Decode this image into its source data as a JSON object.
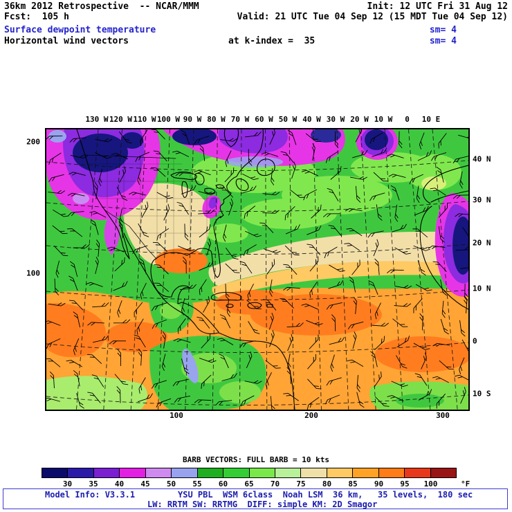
{
  "header": {
    "model_line_left": "36km 2012 Retrospective  -- NCAR/MMM",
    "init_label": "Init: 12 UTC Fri 31 Aug 12",
    "fcst_label": "Fcst:  105 h",
    "valid_label": "Valid: 21 UTC Tue 04 Sep 12 (15 MDT Tue 04 Sep 12)",
    "field_title": "Surface dewpoint temperature",
    "field_sm": "sm= 4",
    "vector_title": "Horizontal wind vectors",
    "vector_level": "at k-index =  35",
    "vector_sm": "sm= 4"
  },
  "map": {
    "top_axis_labels": [
      "130 W",
      "120 W",
      "110 W",
      "100 W",
      "90 W",
      "80 W",
      "70 W",
      "60 W",
      "50 W",
      "40 W",
      "30 W",
      "20 W",
      "10 W",
      "0",
      "10 E"
    ],
    "right_axis_labels": [
      "40 N",
      "30 N",
      "20 N",
      "10 N",
      "0",
      "10 S"
    ],
    "left_axis_labels": [
      "200",
      "100"
    ],
    "bottom_axis_labels": [
      "100",
      "200",
      "300"
    ]
  },
  "legend": {
    "barb_caption": "BARB VECTORS: FULL BARB = 10 kts",
    "colorbar": {
      "unit": "°F",
      "tick_labels": [
        "30",
        "35",
        "40",
        "45",
        "50",
        "55",
        "60",
        "65",
        "70",
        "75",
        "80",
        "85",
        "90",
        "95",
        "100"
      ],
      "colors": [
        "#0b0b6b",
        "#2a1ba8",
        "#7a1fd2",
        "#e31fe3",
        "#cf8af0",
        "#97a3ee",
        "#1fae1f",
        "#35cd35",
        "#7ae84a",
        "#b9f09a",
        "#efe0a8",
        "#ffc963",
        "#ffa226",
        "#ff7c17",
        "#e8381b",
        "#991414"
      ]
    }
  },
  "footer": {
    "model_info": "Model Info: V3.3.1",
    "physics_line1": "YSU PBL  WSM 6class  Noah LSM  36 km,   35 levels,  180 sec",
    "physics_line2": "LW: RRTM SW: RRTMG  DIFF: simple KM: 2D Smagor"
  }
}
